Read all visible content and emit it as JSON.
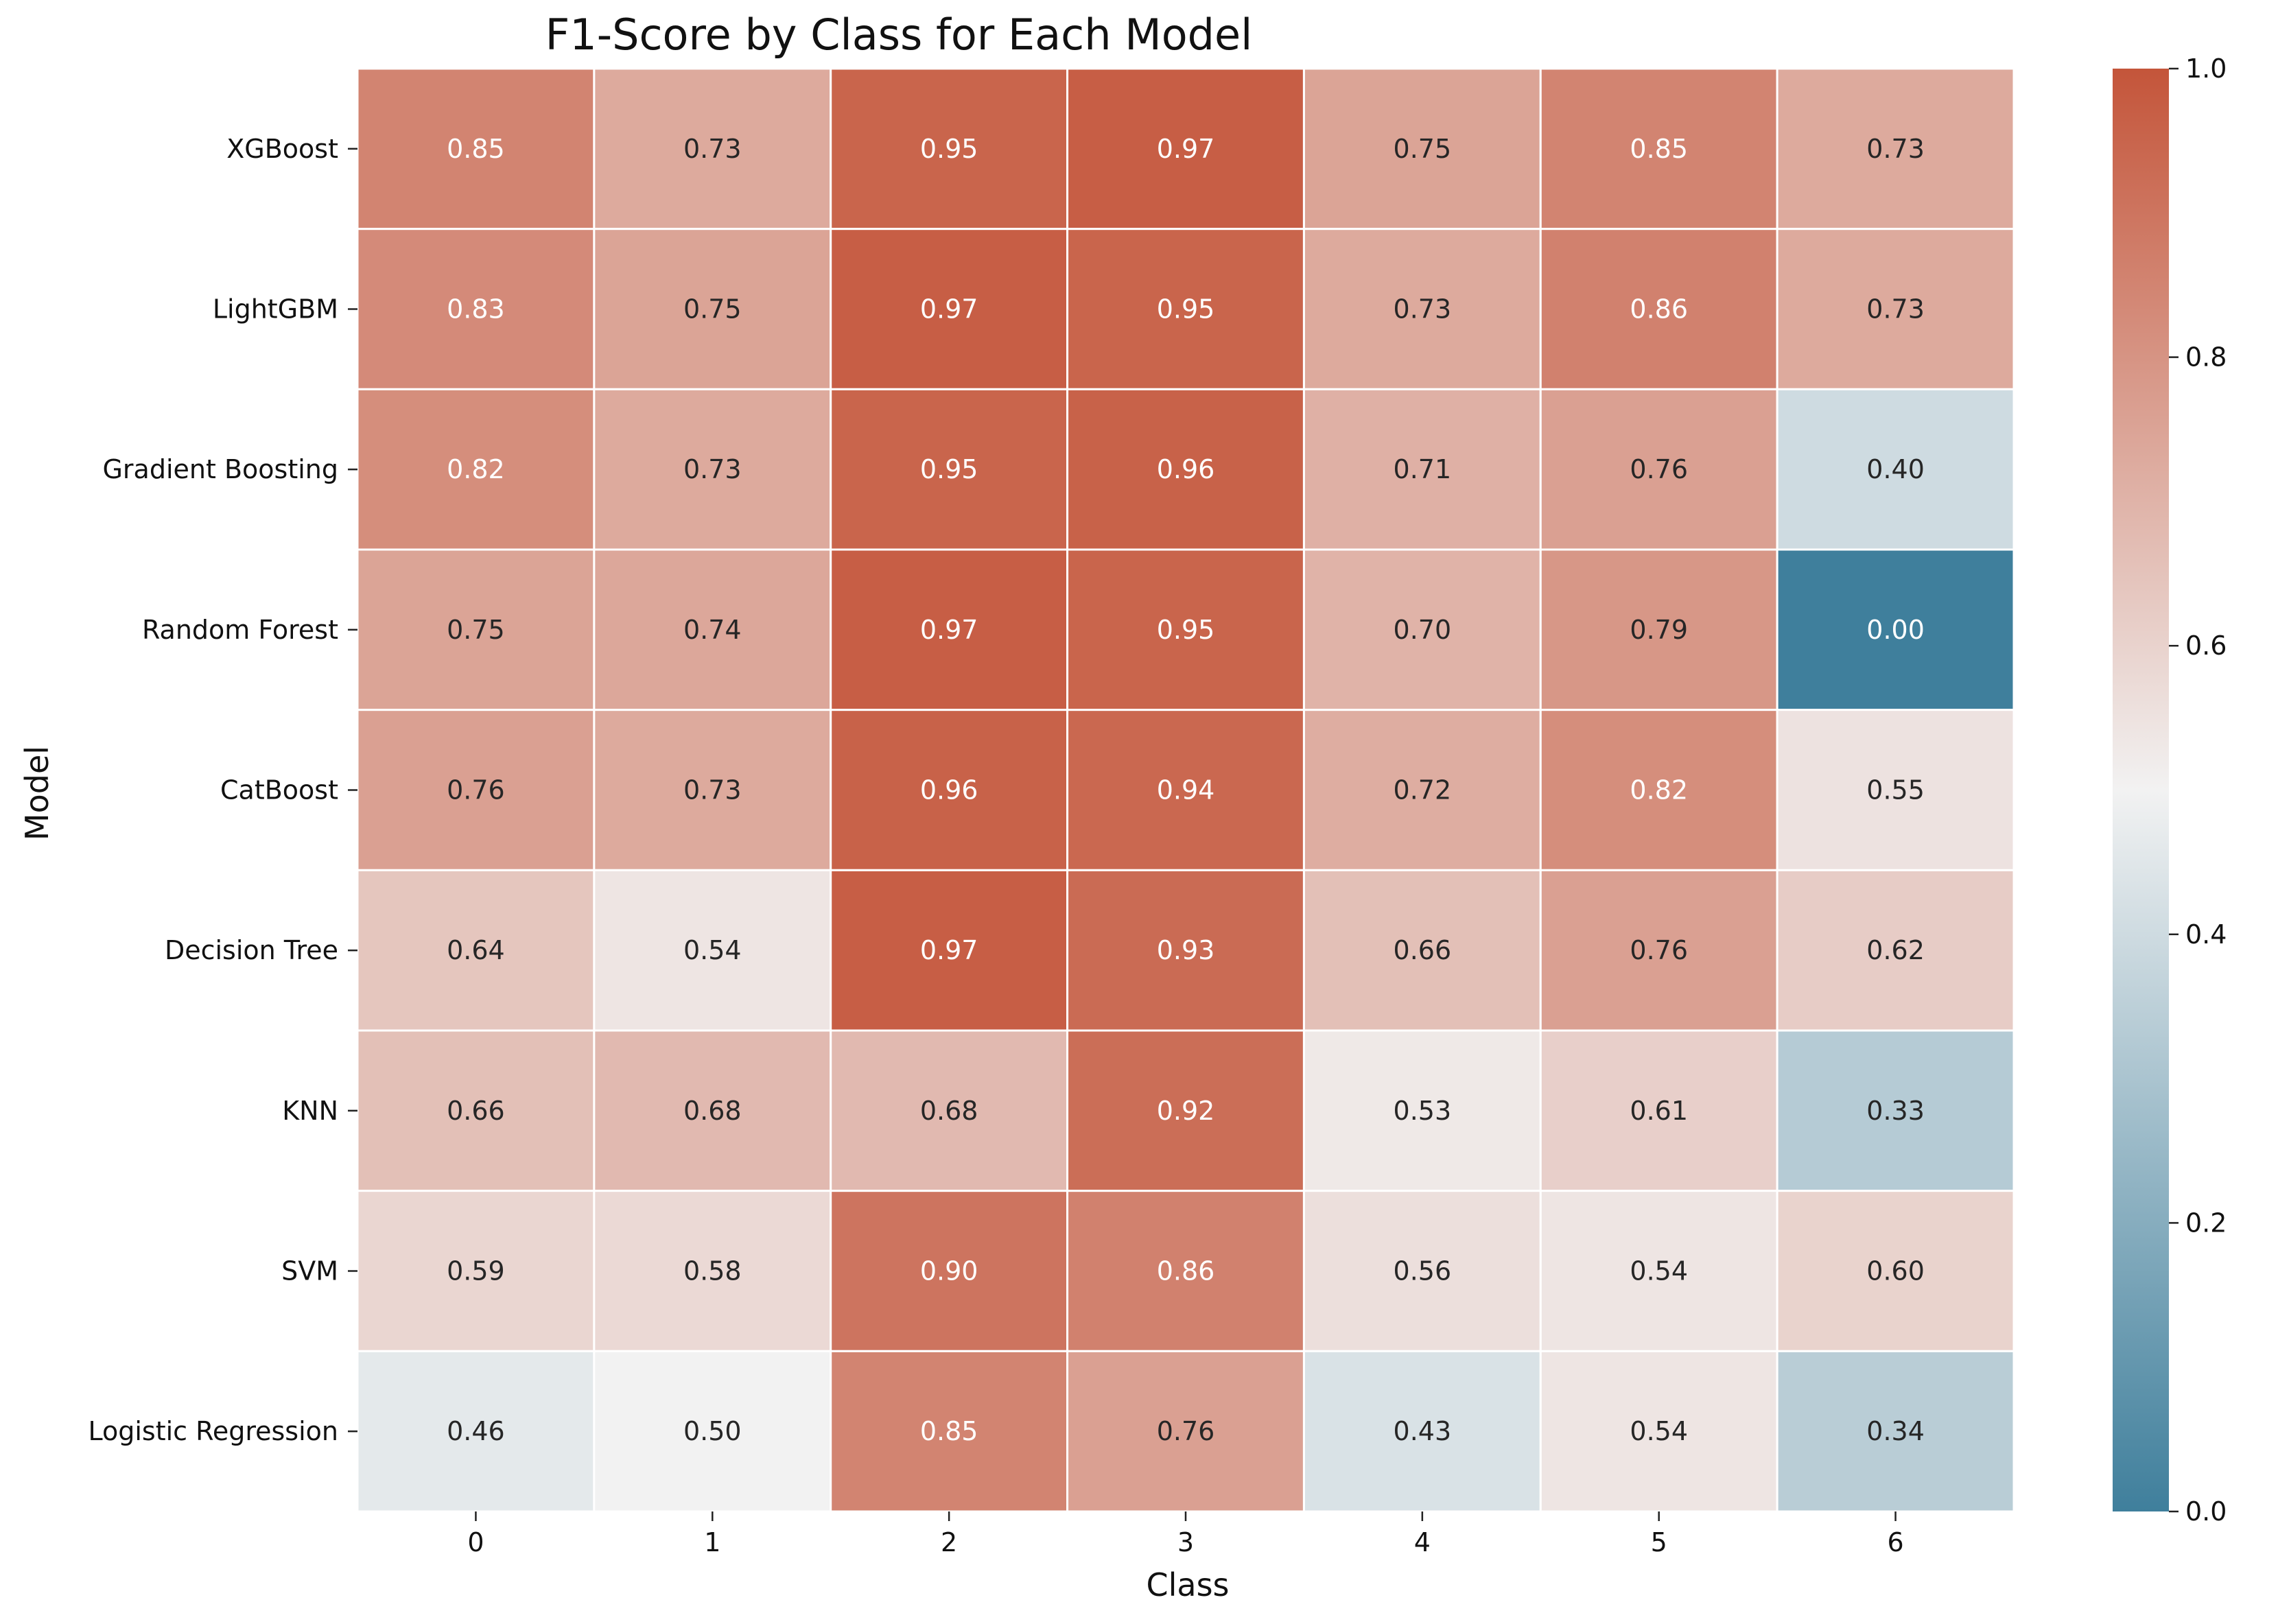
{
  "chart_data": {
    "type": "heatmap",
    "title": "F1-Score by Class for Each Model",
    "xlabel": "Class",
    "ylabel": "Model",
    "x_categories": [
      "0",
      "1",
      "2",
      "3",
      "4",
      "5",
      "6"
    ],
    "y_categories": [
      "XGBoost",
      "LightGBM",
      "Gradient Boosting",
      "Random Forest",
      "CatBoost",
      "Decision Tree",
      "KNN",
      "SVM",
      "Logistic Regression"
    ],
    "values": [
      [
        0.85,
        0.73,
        0.95,
        0.97,
        0.75,
        0.85,
        0.73
      ],
      [
        0.83,
        0.75,
        0.97,
        0.95,
        0.73,
        0.86,
        0.73
      ],
      [
        0.82,
        0.73,
        0.95,
        0.96,
        0.71,
        0.76,
        0.4
      ],
      [
        0.75,
        0.74,
        0.97,
        0.95,
        0.7,
        0.79,
        0.0
      ],
      [
        0.76,
        0.73,
        0.96,
        0.94,
        0.72,
        0.82,
        0.55
      ],
      [
        0.64,
        0.54,
        0.97,
        0.93,
        0.66,
        0.76,
        0.62
      ],
      [
        0.66,
        0.68,
        0.68,
        0.92,
        0.53,
        0.61,
        0.33
      ],
      [
        0.59,
        0.58,
        0.9,
        0.86,
        0.56,
        0.54,
        0.6
      ],
      [
        0.46,
        0.5,
        0.85,
        0.76,
        0.43,
        0.54,
        0.34
      ]
    ],
    "value_format_decimals": 2,
    "colorbar": {
      "range": [
        0.0,
        1.0
      ],
      "ticks": [
        0.0,
        0.2,
        0.4,
        0.6,
        0.8,
        1.0
      ],
      "tick_labels": [
        "0.0",
        "0.2",
        "0.4",
        "0.6",
        "0.8",
        "1.0"
      ],
      "colors": {
        "low": "#3f7f9c",
        "mid": "#f2f2f2",
        "high": "#c4553a"
      }
    },
    "annotations": "cell values printed in each cell",
    "grid": false,
    "legend": "colorbar-right"
  }
}
